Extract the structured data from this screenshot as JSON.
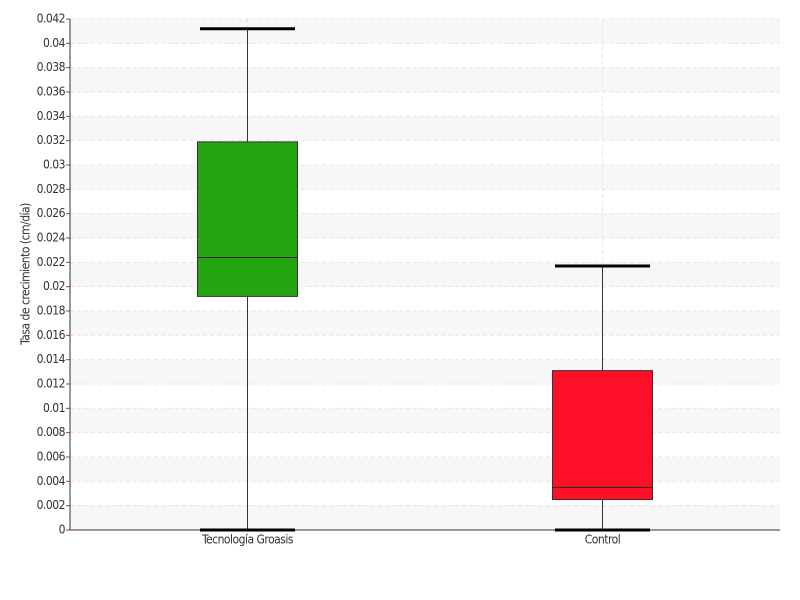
{
  "chart_data": {
    "type": "box",
    "ylabel": "Tasa de crecimiento (cm/día)",
    "categories": [
      "Tecnología Groasis",
      "Control"
    ],
    "colors": [
      "#22a50f",
      "#ff0e28"
    ],
    "min": [
      0,
      0
    ],
    "q1": [
      0.0192,
      0.0025
    ],
    "median": [
      0.0224,
      0.0035
    ],
    "q3": [
      0.0319,
      0.0131
    ],
    "max": [
      0.0412,
      0.0217
    ],
    "ylim": [
      0,
      0.042
    ],
    "yticks": [
      0,
      0.002,
      0.004,
      0.006,
      0.008,
      0.01,
      0.012,
      0.014,
      0.016,
      0.018,
      0.02,
      0.022,
      0.024,
      0.026,
      0.028,
      0.03,
      0.032,
      0.034,
      0.036,
      0.038,
      0.04,
      0.042
    ],
    "grid": true
  }
}
